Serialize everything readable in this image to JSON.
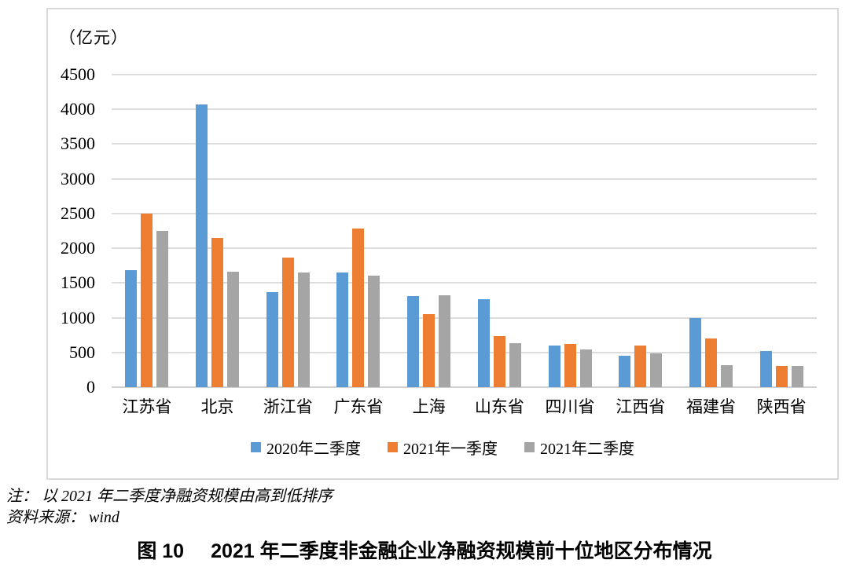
{
  "chart_data": {
    "type": "bar",
    "unit_label": "（亿元）",
    "categories": [
      "江苏省",
      "北京",
      "浙江省",
      "广东省",
      "上海",
      "山东省",
      "四川省",
      "江西省",
      "福建省",
      "陕西省"
    ],
    "series": [
      {
        "name": "2020年二季度",
        "color": "#5b9bd5",
        "values": [
          1680,
          4070,
          1370,
          1650,
          1310,
          1270,
          600,
          450,
          1000,
          520
        ]
      },
      {
        "name": "2021年一季度",
        "color": "#ed7d31",
        "values": [
          2500,
          2150,
          1870,
          2280,
          1050,
          730,
          620,
          600,
          700,
          300
        ]
      },
      {
        "name": "2021年二季度",
        "color": "#a5a5a5",
        "values": [
          2250,
          1660,
          1650,
          1610,
          1320,
          630,
          540,
          490,
          320,
          300
        ]
      }
    ],
    "ylim": [
      0,
      4500
    ],
    "ytick_step": 500,
    "grid": true,
    "gridline_color": "#dcdcdc",
    "legend_position": "bottom",
    "title": "图 10　2021 年二季度非金融企业净融资规模前十位地区分布情况"
  },
  "notes": {
    "line1": "注： 以 2021 年二季度净融资规模由高到低排序",
    "line2": "资料来源： wind"
  },
  "caption": {
    "figure_label": "图 10",
    "title": "2021 年二季度非金融企业净融资规模前十位地区分布情况"
  }
}
